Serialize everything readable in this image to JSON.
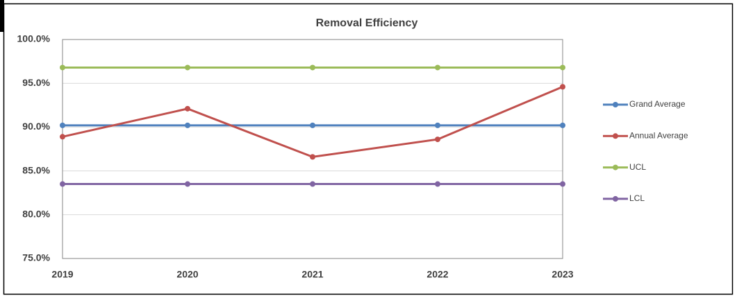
{
  "chart_data": {
    "type": "line",
    "title": "Removal Efficiency",
    "categories": [
      "2019",
      "2020",
      "2021",
      "2022",
      "2023"
    ],
    "series": [
      {
        "name": "Grand Average",
        "color": "#4f81bd",
        "values": [
          90.2,
          90.2,
          90.2,
          90.2,
          90.2
        ]
      },
      {
        "name": "Annual Average",
        "color": "#c0504d",
        "values": [
          88.9,
          92.1,
          86.6,
          88.6,
          94.6
        ]
      },
      {
        "name": "UCL",
        "color": "#9bbb59",
        "values": [
          96.8,
          96.8,
          96.8,
          96.8,
          96.8
        ]
      },
      {
        "name": "LCL",
        "color": "#8064a2",
        "values": [
          83.5,
          83.5,
          83.5,
          83.5,
          83.5
        ]
      }
    ],
    "ylim": [
      75,
      100
    ],
    "yticks": [
      {
        "value": 75,
        "label": "75.0%"
      },
      {
        "value": 80,
        "label": "80.0%"
      },
      {
        "value": 85,
        "label": "85.0%"
      },
      {
        "value": 90,
        "label": "90.0%"
      },
      {
        "value": 95,
        "label": "95.0%"
      },
      {
        "value": 100,
        "label": "100.0%"
      }
    ],
    "grid": true,
    "legend": "right"
  }
}
